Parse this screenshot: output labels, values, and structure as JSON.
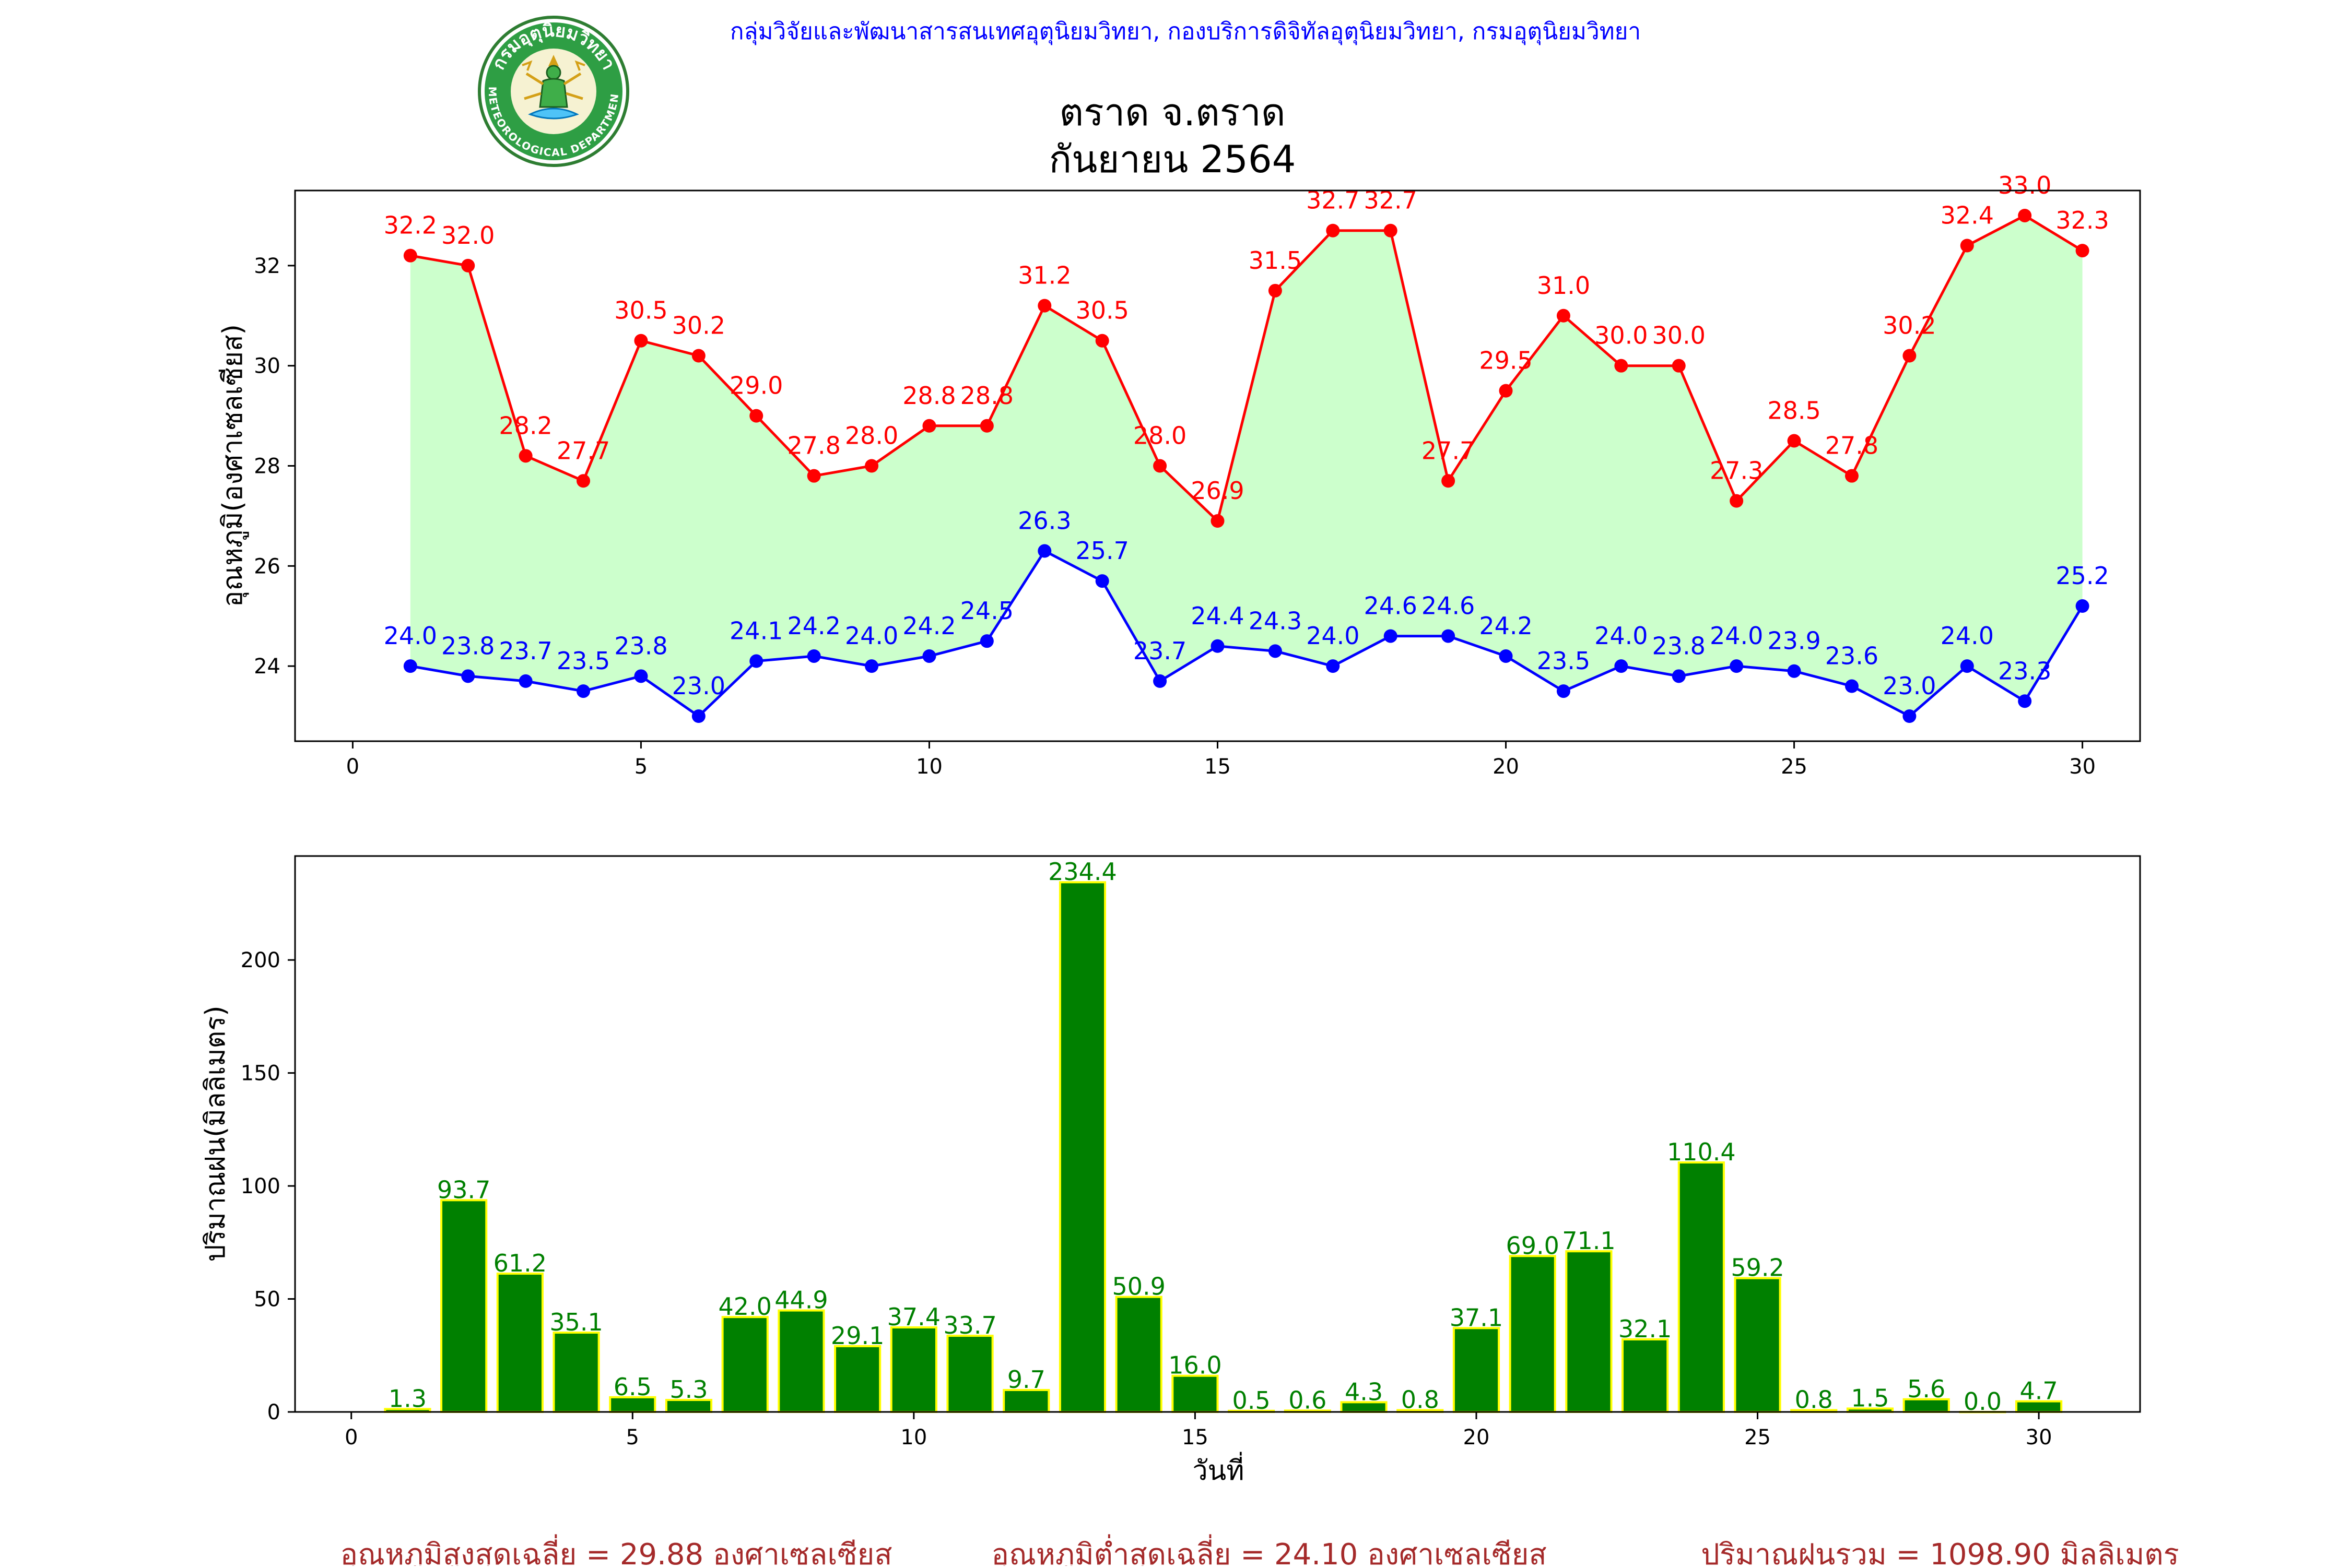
{
  "header": {
    "organization": "กลุ่มวิจัยและพัฒนาสารสนเทศอุตุนิยมวิทยา, กองบริการดิจิทัลอุตุนิยมวิทยา, กรมอุตุนิยมวิทยา",
    "logo_text_top": "กรมอุตุนิยมวิทยา",
    "logo_text_bottom": "METEOROLOGICAL DEPARTMENT"
  },
  "colors": {
    "max_temp": "#ff0000",
    "min_temp": "#0000ff",
    "fill": "#ccffcc",
    "rain_bar": "#008000",
    "rain_edge": "#ffff00",
    "rain_label": "#008000",
    "header_text": "#0000ff",
    "footer_text": "#a52a2a"
  },
  "chart_data": [
    {
      "type": "line",
      "title": "ตราด จ.ตราด",
      "subtitle": "กันยายน 2564",
      "xlabel": "",
      "ylabel": "อุณหภูมิ(องศาเซลเซียส)",
      "xlim": [
        -1,
        31
      ],
      "ylim": [
        22.5,
        33.5
      ],
      "xticks": [
        0,
        5,
        10,
        15,
        20,
        25,
        30
      ],
      "yticks": [
        24,
        26,
        28,
        30,
        32
      ],
      "grid": false,
      "x": [
        1,
        2,
        3,
        4,
        5,
        6,
        7,
        8,
        9,
        10,
        11,
        12,
        13,
        14,
        15,
        16,
        17,
        18,
        19,
        20,
        21,
        22,
        23,
        24,
        25,
        26,
        27,
        28,
        29,
        30
      ],
      "series": [
        {
          "key": "max",
          "values": [
            32.2,
            32.0,
            28.2,
            27.7,
            30.5,
            30.2,
            29.0,
            27.8,
            28.0,
            28.8,
            28.8,
            31.2,
            30.5,
            28.0,
            26.9,
            31.5,
            32.7,
            32.7,
            27.7,
            29.5,
            31.0,
            30.0,
            30.0,
            27.3,
            28.5,
            27.8,
            30.2,
            32.4,
            33.0,
            32.3
          ]
        },
        {
          "key": "min",
          "values": [
            24.0,
            23.8,
            23.7,
            23.5,
            23.8,
            23.0,
            24.1,
            24.2,
            24.0,
            24.2,
            24.5,
            26.3,
            25.7,
            23.7,
            24.4,
            24.3,
            24.0,
            24.6,
            24.6,
            24.2,
            23.5,
            24.0,
            23.8,
            24.0,
            23.9,
            23.6,
            23.0,
            24.0,
            23.3,
            25.2
          ]
        }
      ]
    },
    {
      "type": "bar",
      "title": "",
      "xlabel": "วันที่",
      "ylabel": "ปริมาณฝน(มิลลิเมตร)",
      "xlim": [
        -1,
        31.8
      ],
      "ylim": [
        0,
        246
      ],
      "xticks": [
        0,
        5,
        10,
        15,
        20,
        25,
        30
      ],
      "yticks": [
        0,
        50,
        100,
        150,
        200
      ],
      "grid": false,
      "x": [
        1,
        2,
        3,
        4,
        5,
        6,
        7,
        8,
        9,
        10,
        11,
        12,
        13,
        14,
        15,
        16,
        17,
        18,
        19,
        20,
        21,
        22,
        23,
        24,
        25,
        26,
        27,
        28,
        29,
        30
      ],
      "values": [
        1.3,
        93.7,
        61.2,
        35.1,
        6.5,
        5.3,
        42.0,
        44.9,
        29.1,
        37.4,
        33.7,
        9.7,
        234.4,
        50.9,
        16.0,
        0.5,
        0.6,
        4.3,
        0.8,
        37.1,
        69.0,
        71.1,
        32.1,
        110.4,
        59.2,
        0.8,
        1.5,
        5.6,
        0.0,
        4.7
      ]
    }
  ],
  "footer": {
    "avg_max": "อุณหภูมิสูงสุดเฉลี่ย = 29.88 องศาเซลเซียส",
    "avg_min": "อุณหภูมิต่ำสุดเฉลี่ย = 24.10 องศาเซลเซียส",
    "total_rain": "ปริมาณฝนรวม = 1098.90 มิลลิเมตร"
  }
}
